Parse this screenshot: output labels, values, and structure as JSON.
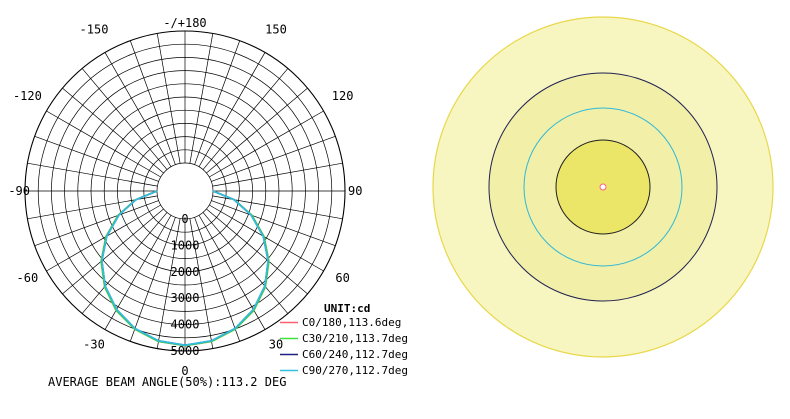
{
  "chart_data": [
    {
      "type": "polar",
      "title": "",
      "unit_label": "UNIT:cd",
      "angle_labels": [
        {
          "angle": 180,
          "text": "-/+180"
        },
        {
          "angle": 150,
          "text": "150"
        },
        {
          "angle": -150,
          "text": "-150"
        },
        {
          "angle": 120,
          "text": "120"
        },
        {
          "angle": -120,
          "text": "-120"
        },
        {
          "angle": 90,
          "text": "90"
        },
        {
          "angle": -90,
          "text": "-90"
        },
        {
          "angle": 60,
          "text": "60"
        },
        {
          "angle": -60,
          "text": "-60"
        },
        {
          "angle": 30,
          "text": "30"
        },
        {
          "angle": -30,
          "text": "-30"
        },
        {
          "angle": 0,
          "text": "0"
        }
      ],
      "radial_axis": {
        "min": 0,
        "max": 5000,
        "ticks": [
          {
            "value": 0,
            "text": "0"
          },
          {
            "value": 1000,
            "text": "1000"
          },
          {
            "value": 2000,
            "text": "2000"
          },
          {
            "value": 3000,
            "text": "3000"
          },
          {
            "value": 4000,
            "text": "4000"
          },
          {
            "value": 5000,
            "text": "5000"
          }
        ]
      },
      "series": [
        {
          "name": "C0/180,113.6deg",
          "color": "#ff6070",
          "angles": [
            0,
            10,
            20,
            30,
            40,
            50,
            60,
            70,
            80,
            90
          ],
          "values": [
            4800,
            4730,
            4510,
            4160,
            3680,
            3090,
            2400,
            1640,
            840,
            0
          ]
        },
        {
          "name": "C30/210,113.7deg",
          "color": "#40e040",
          "angles": [
            0,
            10,
            20,
            30,
            40,
            50,
            60,
            70,
            80,
            90
          ],
          "values": [
            4800,
            4730,
            4510,
            4160,
            3680,
            3090,
            2400,
            1640,
            840,
            0
          ]
        },
        {
          "name": "C60/240,112.7deg",
          "color": "#202080",
          "angles": [
            0,
            10,
            20,
            30,
            40,
            50,
            60,
            70,
            80,
            90
          ],
          "values": [
            4780,
            4700,
            4480,
            4120,
            3640,
            3050,
            2360,
            1600,
            820,
            0
          ]
        },
        {
          "name": "C90/270,112.7deg",
          "color": "#30c0e0",
          "angles": [
            0,
            10,
            20,
            30,
            40,
            50,
            60,
            70,
            80,
            90
          ],
          "values": [
            4780,
            4700,
            4480,
            4120,
            3640,
            3050,
            2360,
            1600,
            820,
            0
          ]
        }
      ],
      "footer": "AVERAGE BEAM ANGLE(50%):113.2 DEG"
    },
    {
      "type": "isolux",
      "title": "",
      "colors": {
        "outer_fill": "#f7f5c0",
        "outer_stroke": "#e8d84a",
        "mid_fill": "#f1efa8",
        "navy_stroke": "#202050",
        "cyan_stroke": "#30b8d8",
        "core_fill": "#ebe668",
        "core_stroke": "#202020",
        "center_dot": "#ff6080"
      }
    }
  ]
}
